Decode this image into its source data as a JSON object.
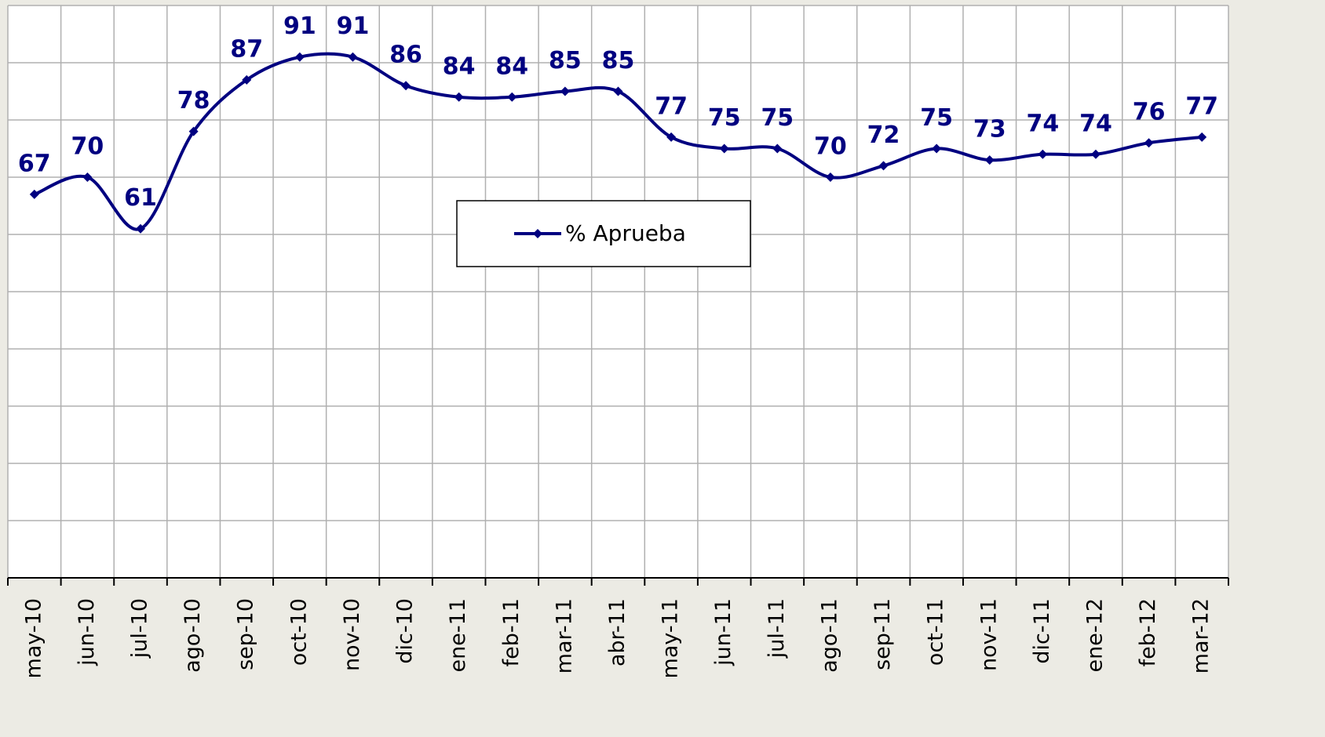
{
  "chart_data": {
    "type": "line",
    "categories": [
      "may-10",
      "jun-10",
      "jul-10",
      "ago-10",
      "sep-10",
      "oct-10",
      "nov-10",
      "dic-10",
      "ene-11",
      "feb-11",
      "mar-11",
      "abr-11",
      "may-11",
      "jun-11",
      "jul-11",
      "ago-11",
      "sep-11",
      "oct-11",
      "nov-11",
      "dic-11",
      "ene-12",
      "feb-12",
      "mar-12"
    ],
    "series": [
      {
        "name": "% Aprueba",
        "color": "#000080",
        "values": [
          67,
          70,
          61,
          78,
          87,
          91,
          91,
          86,
          84,
          84,
          85,
          85,
          77,
          75,
          75,
          70,
          72,
          75,
          73,
          74,
          74,
          76,
          77
        ]
      }
    ],
    "ylim": [
      0,
      100
    ],
    "yticks": [
      0,
      10,
      20,
      30,
      40,
      50,
      60,
      70,
      80,
      90,
      100
    ],
    "grid": true
  }
}
